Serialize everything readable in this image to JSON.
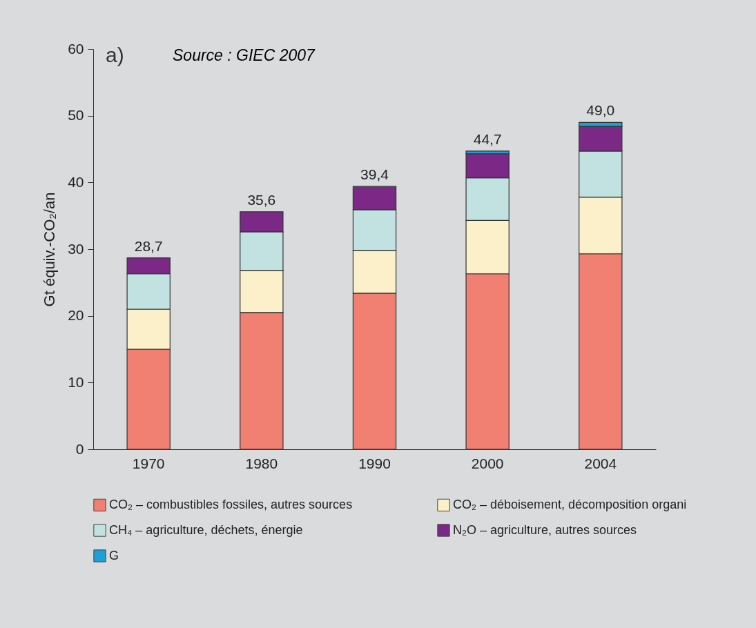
{
  "chart_data": {
    "type": "bar",
    "stacked": true,
    "annotations": [
      "a)",
      "Source : GIEC 2007"
    ],
    "ylabel": "Gt équiv.-CO₂/an",
    "categories": [
      "1970",
      "1980",
      "1990",
      "2000",
      "2004"
    ],
    "series": [
      {
        "name": "CO₂ – combustibles fossiles, autres sources",
        "color": "#f17f72",
        "values": [
          15.0,
          20.5,
          23.4,
          26.3,
          29.3
        ]
      },
      {
        "name": "CO₂ – déboisement, décomposition organi",
        "color": "#fbf0c9",
        "values": [
          6.0,
          6.3,
          6.4,
          8.0,
          8.5
        ]
      },
      {
        "name": "CH₄ – agriculture, déchets, énergie",
        "color": "#c1e2e0",
        "values": [
          5.3,
          5.8,
          6.1,
          6.4,
          6.9
        ]
      },
      {
        "name": "N₂O – agriculture, autres sources",
        "color": "#7b2886",
        "values": [
          2.4,
          3.0,
          3.5,
          3.6,
          3.7
        ]
      },
      {
        "name": "G",
        "color": "#1f9fd6",
        "values": [
          null,
          null,
          null,
          0.4,
          0.6
        ]
      }
    ],
    "totals": [
      "28,7",
      "35,6",
      "39,4",
      "44,7",
      "49,0"
    ],
    "ylim": [
      0,
      60
    ],
    "yticks": [
      0,
      10,
      20,
      30,
      40,
      50,
      60
    ],
    "legend": "bottom"
  }
}
